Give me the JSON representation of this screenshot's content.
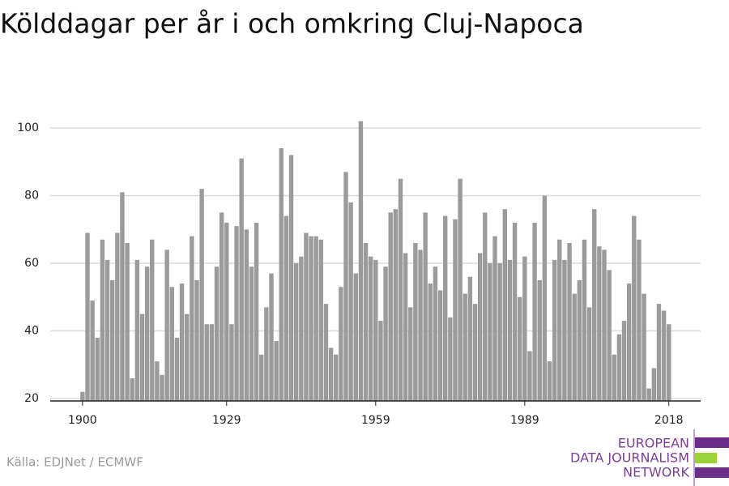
{
  "chart_data": {
    "type": "bar",
    "title": "Kölddagar per år i och omkring Cluj-Napoca",
    "source": "Källa: EDJNet / ECMWF",
    "logo": [
      "EUROPEAN",
      "DATA JOURNALISM",
      "NETWORK"
    ],
    "color": "#9b9b9b",
    "grid": true,
    "x": [
      1900,
      1901,
      1902,
      1903,
      1904,
      1905,
      1906,
      1907,
      1908,
      1909,
      1910,
      1911,
      1912,
      1913,
      1914,
      1915,
      1916,
      1917,
      1918,
      1919,
      1920,
      1921,
      1922,
      1923,
      1924,
      1925,
      1926,
      1927,
      1928,
      1929,
      1930,
      1931,
      1932,
      1933,
      1934,
      1935,
      1936,
      1937,
      1938,
      1939,
      1940,
      1941,
      1942,
      1943,
      1944,
      1945,
      1946,
      1947,
      1948,
      1949,
      1950,
      1951,
      1952,
      1953,
      1954,
      1955,
      1956,
      1957,
      1958,
      1959,
      1960,
      1961,
      1962,
      1963,
      1964,
      1965,
      1966,
      1967,
      1968,
      1969,
      1970,
      1971,
      1972,
      1973,
      1974,
      1975,
      1976,
      1977,
      1978,
      1979,
      1980,
      1981,
      1982,
      1983,
      1984,
      1985,
      1986,
      1987,
      1988,
      1989,
      1990,
      1991,
      1992,
      1993,
      1994,
      1995,
      1996,
      1997,
      1998,
      1999,
      2000,
      2001,
      2002,
      2003,
      2004,
      2005,
      2006,
      2007,
      2008,
      2009,
      2010,
      2011,
      2012,
      2013,
      2014,
      2015,
      2016,
      2017,
      2018
    ],
    "values": [
      22,
      69,
      49,
      38,
      67,
      61,
      55,
      69,
      81,
      66,
      26,
      61,
      45,
      59,
      67,
      31,
      27,
      64,
      53,
      38,
      54,
      45,
      68,
      55,
      82,
      42,
      42,
      59,
      75,
      72,
      42,
      71,
      91,
      70,
      59,
      72,
      33,
      47,
      57,
      37,
      94,
      74,
      92,
      60,
      62,
      69,
      68,
      68,
      67,
      48,
      35,
      33,
      53,
      87,
      78,
      57,
      102,
      66,
      62,
      61,
      43,
      59,
      75,
      76,
      85,
      63,
      47,
      66,
      64,
      75,
      54,
      59,
      52,
      74,
      44,
      73,
      85,
      51,
      56,
      48,
      63,
      75,
      60,
      68,
      60,
      76,
      61,
      72,
      50,
      62,
      34,
      72,
      55,
      80,
      31,
      61,
      67,
      61,
      66,
      51,
      55,
      67,
      47,
      76,
      65,
      64,
      58,
      33,
      39,
      43,
      54,
      74,
      67,
      51,
      23,
      29,
      48,
      46,
      42
    ],
    "xlim": [
      1893.5,
      2024.4
    ],
    "xticks": [
      1900,
      1929,
      1959,
      1989,
      2018
    ],
    "ylim": [
      19.3,
      102
    ],
    "yticks": [
      20,
      40,
      60,
      80,
      100
    ]
  }
}
